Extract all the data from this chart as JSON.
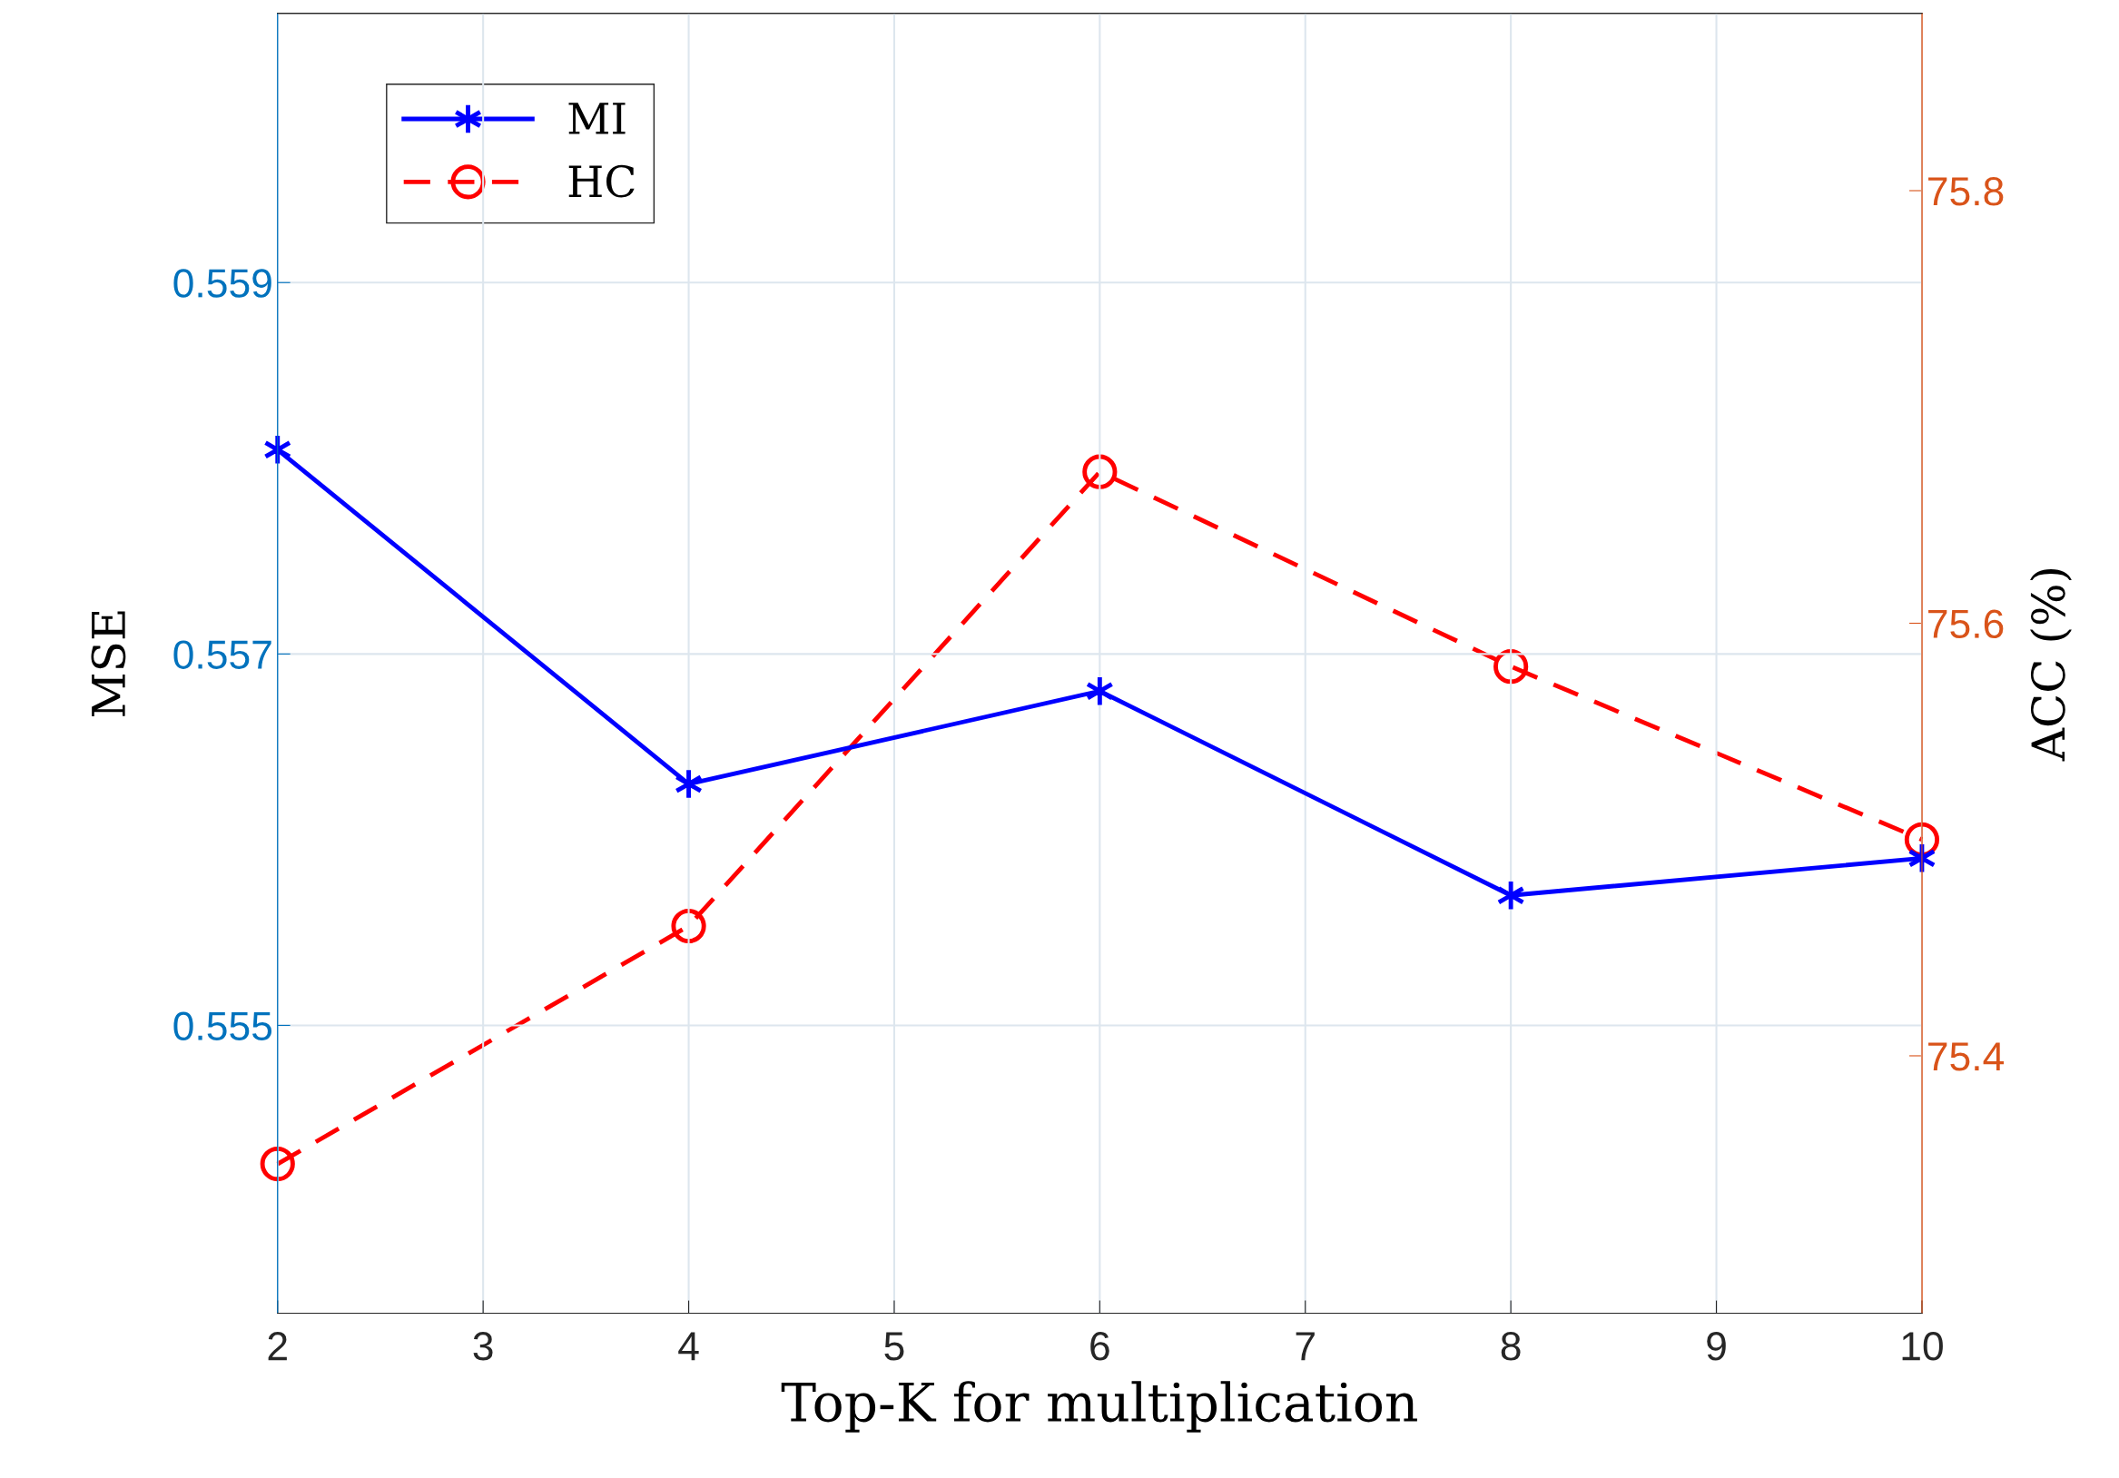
{
  "chart_data": {
    "type": "line",
    "xlabel": "Top-K for multiplication",
    "ylabel": "MSE",
    "y2label": "ACC (%)",
    "x": [
      2,
      4,
      6,
      8,
      10
    ],
    "series": [
      {
        "name": "MI",
        "color": "#0000ff",
        "values": [
          0.5581,
          0.5563,
          0.5568,
          0.5557,
          0.5559
        ],
        "marker": "cross",
        "line_style": "solid"
      },
      {
        "name": "HC",
        "color": "#ff0000",
        "values": [
          75.35,
          75.46,
          75.67,
          75.58,
          75.5
        ],
        "marker": "circle",
        "line_style": "dashed",
        "axis": "y2"
      }
    ],
    "xlim": [
      2,
      10
    ],
    "xticks": [
      2,
      3,
      4,
      5,
      6,
      7,
      8,
      9,
      10
    ],
    "ylim": [
      0.55345,
      0.56045
    ],
    "yticks": [
      0.555,
      0.557,
      0.559
    ],
    "y2lim": [
      75.281,
      75.882
    ],
    "y2ticks": [
      75.4,
      75.6,
      75.8
    ],
    "grid": true,
    "legend": "top left"
  }
}
